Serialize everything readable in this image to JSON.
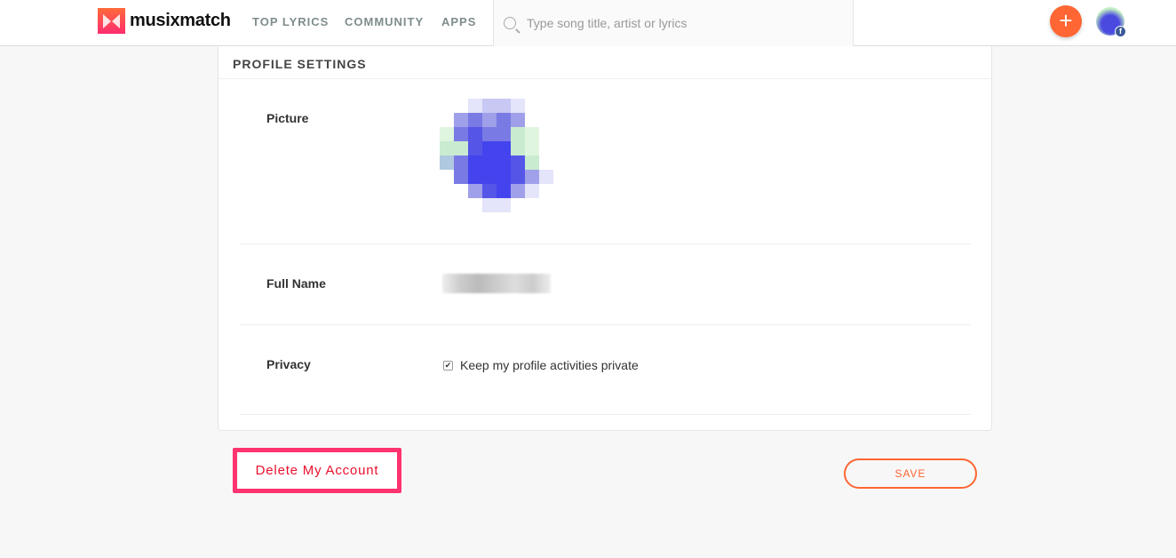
{
  "header": {
    "logo_text": "musixmatch",
    "nav": [
      "TOP LYRICS",
      "COMMUNITY",
      "APPS"
    ],
    "search_placeholder": "Type song title, artist or lyrics",
    "add_label": "+",
    "fb_badge": "f"
  },
  "profile": {
    "title": "PROFILE SETTINGS",
    "picture_label": "Picture",
    "full_name_label": "Full Name",
    "privacy_label": "Privacy",
    "privacy_checkbox": "Keep my profile activities private",
    "privacy_checked": true
  },
  "actions": {
    "delete_label": "Delete My Account",
    "save_label": "SAVE"
  },
  "colors": {
    "accent": "#ff6633",
    "delete": "#e8112d",
    "highlight": "#ff3370"
  }
}
